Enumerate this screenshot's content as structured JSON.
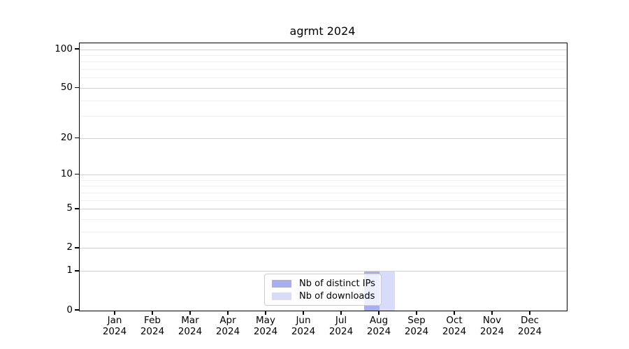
{
  "chart_data": {
    "type": "bar",
    "title": "agrmt 2024",
    "categories": [
      "Jan",
      "Feb",
      "Mar",
      "Apr",
      "May",
      "Jun",
      "Jul",
      "Aug",
      "Sep",
      "Oct",
      "Nov",
      "Dec"
    ],
    "x_tick_sublabel": "2024",
    "series": [
      {
        "name": "Nb of distinct IPs",
        "color": "#a9aeed",
        "values": [
          0,
          0,
          0,
          0,
          0,
          0,
          0,
          1,
          0,
          0,
          0,
          0
        ]
      },
      {
        "name": "Nb of downloads",
        "color": "#d9dcf8",
        "values": [
          0,
          0,
          0,
          0,
          0,
          0,
          0,
          1,
          0,
          0,
          0,
          0
        ]
      }
    ],
    "y_axis": {
      "scale": "log1p",
      "ylim": [
        0,
        100
      ],
      "major_ticks": [
        0,
        1,
        2,
        5,
        10,
        20,
        50,
        100
      ],
      "minor_gridlines": [
        3,
        4,
        6,
        7,
        8,
        9,
        30,
        40,
        60,
        70,
        80,
        90
      ]
    },
    "legend": {
      "location": "lower center"
    },
    "grid": true,
    "colors": {
      "major_grid": "#d2d2d2",
      "minor_grid": "#efefef",
      "axis": "#000000",
      "background": "#ffffff"
    }
  }
}
